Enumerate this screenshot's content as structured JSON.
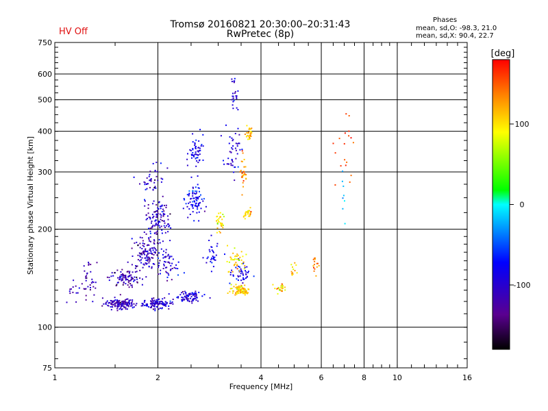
{
  "header": {
    "title": "Tromsø 20160821 20:30:00–20:31:43",
    "subtitle": "RwPretec (8p)",
    "status": "HV Off",
    "status_color": "#e01010",
    "stats_title": "Phases",
    "stats_o": "mean, sd,O: -98.3, 21.0",
    "stats_x": "mean, sd,X:  90.4, 22.7"
  },
  "chart_data": {
    "type": "scatter",
    "title": "Tromsø 20160821 20:30:00–20:31:43",
    "subtitle": "RwPretec (8p)",
    "xlabel": "Frequency [MHz]",
    "ylabel": "Stationary phase Virtual Height [km]",
    "x_scale": "log",
    "y_scale": "log",
    "xlim": [
      1,
      16
    ],
    "ylim": [
      75,
      750
    ],
    "x_ticks": [
      1,
      2,
      4,
      6,
      8,
      10,
      16
    ],
    "x_tick_labels": [
      "1",
      "2",
      "4",
      "6",
      "8",
      "10",
      "16"
    ],
    "x_grid": [
      2,
      4,
      6,
      8,
      10
    ],
    "y_ticks": [
      75,
      100,
      200,
      300,
      400,
      500,
      600,
      750
    ],
    "y_tick_labels": [
      "75",
      "100",
      "200",
      "300",
      "400",
      "500",
      "600",
      "750"
    ],
    "y_grid": [
      100,
      200,
      300,
      400,
      500,
      600
    ],
    "grid": true,
    "colorbar": {
      "label": "[deg]",
      "ticks": [
        100,
        0,
        -100
      ],
      "tick_labels": [
        "100",
        "0",
        "-100"
      ],
      "range": [
        -180,
        180
      ]
    },
    "clusters": [
      {
        "x": 1.55,
        "y": 118,
        "dx": 0.055,
        "dy": 0.018,
        "n": 130,
        "phase": -110,
        "ps": 18
      },
      {
        "x": 2.0,
        "y": 118,
        "dx": 0.05,
        "dy": 0.018,
        "n": 110,
        "phase": -100,
        "ps": 18
      },
      {
        "x": 2.45,
        "y": 124,
        "dx": 0.045,
        "dy": 0.02,
        "n": 80,
        "phase": -95,
        "ps": 18
      },
      {
        "x": 1.6,
        "y": 142,
        "dx": 0.05,
        "dy": 0.03,
        "n": 90,
        "phase": -120,
        "ps": 22
      },
      {
        "x": 1.85,
        "y": 170,
        "dx": 0.05,
        "dy": 0.06,
        "n": 120,
        "phase": -115,
        "ps": 22
      },
      {
        "x": 2.0,
        "y": 215,
        "dx": 0.04,
        "dy": 0.07,
        "n": 110,
        "phase": -105,
        "ps": 22
      },
      {
        "x": 1.92,
        "y": 280,
        "dx": 0.04,
        "dy": 0.08,
        "n": 45,
        "phase": -110,
        "ps": 22
      },
      {
        "x": 2.15,
        "y": 155,
        "dx": 0.04,
        "dy": 0.05,
        "n": 55,
        "phase": -95,
        "ps": 20
      },
      {
        "x": 2.55,
        "y": 245,
        "dx": 0.03,
        "dy": 0.06,
        "n": 80,
        "phase": -80,
        "ps": 18
      },
      {
        "x": 2.6,
        "y": 340,
        "dx": 0.025,
        "dy": 0.06,
        "n": 55,
        "phase": -90,
        "ps": 18
      },
      {
        "x": 2.9,
        "y": 165,
        "dx": 0.03,
        "dy": 0.05,
        "n": 30,
        "phase": -85,
        "ps": 18
      },
      {
        "x": 3.3,
        "y": 350,
        "dx": 0.025,
        "dy": 0.08,
        "n": 45,
        "phase": -95,
        "ps": 18
      },
      {
        "x": 3.35,
        "y": 520,
        "dx": 0.012,
        "dy": 0.06,
        "n": 25,
        "phase": -95,
        "ps": 18
      },
      {
        "x": 3.5,
        "y": 145,
        "dx": 0.03,
        "dy": 0.04,
        "n": 45,
        "phase": -90,
        "ps": 18
      },
      {
        "x": 1.25,
        "y": 140,
        "dx": 0.03,
        "dy": 0.06,
        "n": 35,
        "phase": -125,
        "ps": 20
      },
      {
        "x": 1.12,
        "y": 128,
        "dx": 0.02,
        "dy": 0.05,
        "n": 12,
        "phase": -115,
        "ps": 20
      },
      {
        "x": 3.05,
        "y": 210,
        "dx": 0.015,
        "dy": 0.03,
        "n": 30,
        "phase": 100,
        "ps": 18
      },
      {
        "x": 3.5,
        "y": 130,
        "dx": 0.035,
        "dy": 0.02,
        "n": 80,
        "phase": 110,
        "ps": 20
      },
      {
        "x": 3.4,
        "y": 160,
        "dx": 0.03,
        "dy": 0.05,
        "n": 40,
        "phase": 105,
        "ps": 20
      },
      {
        "x": 3.65,
        "y": 225,
        "dx": 0.015,
        "dy": 0.02,
        "n": 25,
        "phase": 110,
        "ps": 18
      },
      {
        "x": 3.55,
        "y": 300,
        "dx": 0.012,
        "dy": 0.06,
        "n": 30,
        "phase": 130,
        "ps": 18
      },
      {
        "x": 3.7,
        "y": 390,
        "dx": 0.012,
        "dy": 0.03,
        "n": 30,
        "phase": 115,
        "ps": 18
      },
      {
        "x": 4.55,
        "y": 132,
        "dx": 0.02,
        "dy": 0.015,
        "n": 25,
        "phase": 110,
        "ps": 18
      },
      {
        "x": 5.0,
        "y": 150,
        "dx": 0.015,
        "dy": 0.03,
        "n": 12,
        "phase": 110,
        "ps": 18
      },
      {
        "x": 5.75,
        "y": 155,
        "dx": 0.01,
        "dy": 0.04,
        "n": 15,
        "phase": 140,
        "ps": 18
      },
      {
        "x": 7.0,
        "y": 350,
        "dx": 0.03,
        "dy": 0.15,
        "n": 18,
        "phase": 160,
        "ps": 18
      },
      {
        "x": 7.0,
        "y": 250,
        "dx": 0.01,
        "dy": 0.1,
        "n": 8,
        "phase": -20,
        "ps": 18
      }
    ]
  }
}
